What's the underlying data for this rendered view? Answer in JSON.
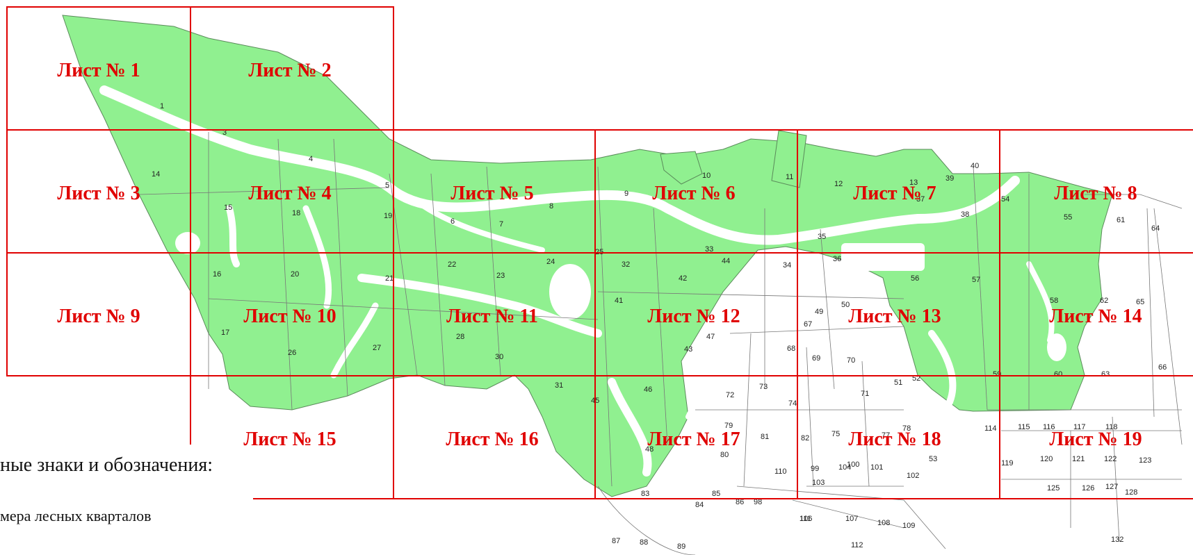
{
  "sheets": [
    {
      "label": "Лист № 1"
    },
    {
      "label": "Лист № 2"
    },
    {
      "label": "Лист № 3"
    },
    {
      "label": "Лист № 4"
    },
    {
      "label": "Лист № 5"
    },
    {
      "label": "Лист № 6"
    },
    {
      "label": "Лист № 7"
    },
    {
      "label": "Лист № 8"
    },
    {
      "label": "Лист № 9"
    },
    {
      "label": "Лист № 10"
    },
    {
      "label": "Лист № 11"
    },
    {
      "label": "Лист № 12"
    },
    {
      "label": "Лист № 13"
    },
    {
      "label": "Лист № 14"
    },
    {
      "label": "Лист № 15"
    },
    {
      "label": "Лист № 16"
    },
    {
      "label": "Лист № 17"
    },
    {
      "label": "Лист № 18"
    },
    {
      "label": "Лист № 19"
    }
  ],
  "quarters": [
    "1",
    "2",
    "3",
    "4",
    "5",
    "6",
    "7",
    "8",
    "9",
    "10",
    "11",
    "12",
    "13",
    "14",
    "15",
    "16",
    "17",
    "18",
    "19",
    "20",
    "21",
    "22",
    "23",
    "24",
    "25",
    "26",
    "27",
    "28",
    "30",
    "31",
    "32",
    "33",
    "34",
    "35",
    "36",
    "37",
    "38",
    "39",
    "40",
    "41",
    "42",
    "43",
    "44",
    "45",
    "46",
    "47",
    "48",
    "49",
    "50",
    "51",
    "52",
    "53",
    "54",
    "55",
    "56",
    "57",
    "58",
    "59",
    "60",
    "61",
    "62",
    "63",
    "64",
    "65",
    "66",
    "67",
    "68",
    "69",
    "70",
    "71",
    "72",
    "73",
    "74",
    "75",
    "77",
    "78",
    "79",
    "80",
    "81",
    "82",
    "83",
    "84",
    "85",
    "86",
    "87",
    "88",
    "89",
    "98",
    "99",
    "100",
    "101",
    "102",
    "103",
    "104",
    "106",
    "107",
    "108",
    "109",
    "110",
    "111",
    "112",
    "114",
    "115",
    "116",
    "117",
    "118",
    "119",
    "120",
    "121",
    "122",
    "123",
    "125",
    "126",
    "127",
    "128",
    "132"
  ],
  "legend": {
    "title": "ные знаки и обозначения:",
    "item": "мера лесных кварталов"
  },
  "colors": {
    "forest": "#90f090",
    "grid": "#e00000",
    "boundary": "#555555"
  }
}
